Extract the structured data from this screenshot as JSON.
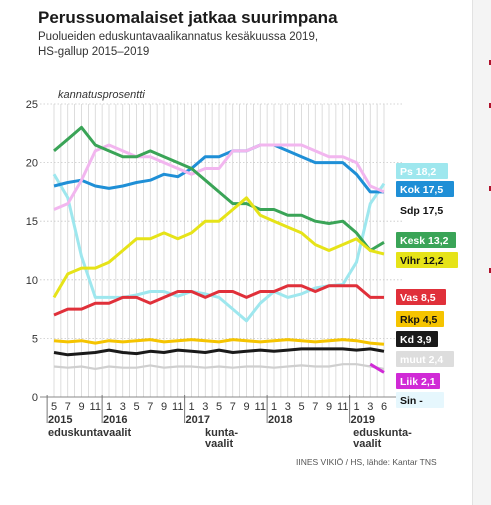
{
  "title": "Perussuomalaiset jatkaa suurimpana",
  "subtitle_lines": [
    "Puolueiden eduskuntavaalikannatus kesäkuussa 2019,",
    "HS-gallup 2015–2019"
  ],
  "credit": "IINES VIKIÖ / HS, lähde: Kantar TNS",
  "chart_data": {
    "type": "line",
    "ylabel": "kannatusprosentti",
    "ylim": [
      0,
      25
    ],
    "yticks": [
      0,
      5,
      10,
      15,
      20,
      25
    ],
    "x_month_labels": [
      "5",
      "7",
      "9",
      "11",
      "1",
      "3",
      "5",
      "7",
      "9",
      "11",
      "1",
      "3",
      "5",
      "7",
      "9",
      "11",
      "1",
      "3",
      "5",
      "7",
      "9",
      "11",
      "1",
      "3",
      "6"
    ],
    "x_year_labels": [
      {
        "label": "2015",
        "index": 0
      },
      {
        "label": "2016",
        "index": 4
      },
      {
        "label": "2017",
        "index": 10
      },
      {
        "label": "2018",
        "index": 16
      },
      {
        "label": "2019",
        "index": 22
      }
    ],
    "annotations": [
      {
        "lines": [
          "eduskuntavaalit"
        ],
        "index": 0
      },
      {
        "lines": [
          "kunta-",
          "vaalit"
        ],
        "index": 12
      },
      {
        "lines": [
          "eduskunta-",
          "vaalit"
        ],
        "index": 23.5
      }
    ],
    "series": [
      {
        "name": "Ps",
        "label": "Ps 18,2",
        "color": "#9ee7ee",
        "label_bg": "#9ee7ee",
        "label_fg": "#ffffff",
        "values": [
          19.0,
          17.0,
          12.0,
          8.5,
          8.5,
          8.5,
          8.7,
          9.0,
          9.0,
          8.6,
          9.0,
          8.8,
          8.5,
          7.5,
          6.5,
          8.0,
          9.0,
          8.5,
          8.8,
          9.3,
          9.5,
          9.6,
          11.5,
          16.5,
          18.2
        ]
      },
      {
        "name": "Kok",
        "label": "Kok 17,5",
        "color": "#1f8fd6",
        "label_bg": "#1f8fd6",
        "label_fg": "#ffffff",
        "values": [
          18.0,
          18.3,
          18.5,
          18.0,
          17.8,
          18.0,
          18.3,
          18.5,
          19.0,
          18.8,
          19.5,
          20.5,
          20.5,
          21.0,
          21.0,
          21.5,
          21.5,
          21.0,
          20.5,
          20.0,
          20.0,
          20.0,
          19.0,
          17.5,
          17.5
        ]
      },
      {
        "name": "Sdp",
        "label": "Sdp 17,5",
        "color": "#f2b6ef",
        "label_bg": "#ffffff",
        "label_fg": "#111111",
        "values": [
          16.0,
          16.5,
          18.5,
          21.0,
          21.5,
          21.0,
          20.5,
          20.5,
          20.0,
          19.5,
          19.0,
          19.5,
          19.5,
          21.0,
          21.0,
          21.5,
          21.5,
          21.5,
          21.5,
          21.0,
          20.5,
          20.5,
          20.0,
          18.0,
          17.5
        ]
      },
      {
        "name": "Kesk",
        "label": "Kesk 13,2",
        "color": "#3aa457",
        "label_bg": "#3aa457",
        "label_fg": "#ffffff",
        "values": [
          21.0,
          22.0,
          23.0,
          21.5,
          21.0,
          20.5,
          20.5,
          21.0,
          20.5,
          20.0,
          19.5,
          18.5,
          17.5,
          16.5,
          16.5,
          16.0,
          16.0,
          15.5,
          15.5,
          15.0,
          14.8,
          15.0,
          14.0,
          12.5,
          13.2
        ]
      },
      {
        "name": "Vihr",
        "label": "Vihr 12,2",
        "color": "#e6e318",
        "label_bg": "#e6e318",
        "label_fg": "#111111",
        "values": [
          8.5,
          10.5,
          11.0,
          11.0,
          11.5,
          12.5,
          13.5,
          13.5,
          14.0,
          13.5,
          14.0,
          15.0,
          15.0,
          16.0,
          17.0,
          15.5,
          15.0,
          14.5,
          14.0,
          13.0,
          12.5,
          13.0,
          13.5,
          12.5,
          12.2
        ]
      },
      {
        "name": "Vas",
        "label": "Vas 8,5",
        "color": "#e0303a",
        "label_bg": "#e0303a",
        "label_fg": "#ffffff",
        "values": [
          7.0,
          7.5,
          7.5,
          8.0,
          8.0,
          8.5,
          8.5,
          8.0,
          8.5,
          9.0,
          9.0,
          8.5,
          9.0,
          9.0,
          8.5,
          9.0,
          9.0,
          9.5,
          9.5,
          9.0,
          9.5,
          9.5,
          9.5,
          8.5,
          8.5
        ]
      },
      {
        "name": "Rkp",
        "label": "Rkp 4,5",
        "color": "#f5c400",
        "label_bg": "#f5c400",
        "label_fg": "#111111",
        "values": [
          4.8,
          4.7,
          4.8,
          4.6,
          4.8,
          4.7,
          4.8,
          4.9,
          4.7,
          4.8,
          4.9,
          4.8,
          4.7,
          4.9,
          4.8,
          4.7,
          4.8,
          4.9,
          4.8,
          4.7,
          4.8,
          4.9,
          4.8,
          4.6,
          4.5
        ]
      },
      {
        "name": "Kd",
        "label": "Kd 3,9",
        "color": "#1a1a1a",
        "label_bg": "#1a1a1a",
        "label_fg": "#ffffff",
        "values": [
          3.8,
          3.6,
          3.7,
          3.8,
          4.0,
          3.8,
          3.7,
          3.9,
          3.8,
          4.0,
          3.9,
          3.8,
          4.0,
          3.8,
          3.9,
          4.0,
          3.9,
          4.0,
          4.1,
          4.1,
          4.1,
          4.1,
          4.0,
          4.1,
          3.9
        ]
      },
      {
        "name": "muut",
        "label": "muut 2,4",
        "color": "#cfcfcf",
        "label_bg": "#dddddd",
        "label_fg": "#ffffff",
        "values": [
          2.6,
          2.5,
          2.6,
          2.4,
          2.6,
          2.5,
          2.5,
          2.7,
          2.5,
          2.6,
          2.6,
          2.5,
          2.6,
          2.5,
          2.6,
          2.6,
          2.5,
          2.6,
          2.7,
          2.6,
          2.6,
          2.8,
          2.8,
          2.6,
          2.4
        ]
      },
      {
        "name": "Liik",
        "label": "Liik 2,1",
        "color": "#d02ad6",
        "label_bg": "#d02ad6",
        "label_fg": "#ffffff",
        "values": [
          null,
          null,
          null,
          null,
          null,
          null,
          null,
          null,
          null,
          null,
          null,
          null,
          null,
          null,
          null,
          null,
          null,
          null,
          null,
          null,
          null,
          null,
          null,
          2.8,
          2.1
        ]
      },
      {
        "name": "Sin",
        "label": "Sin -",
        "color": "#bfe9f7",
        "label_bg": "#e6f7fd",
        "label_fg": "#111111",
        "values": []
      }
    ]
  }
}
